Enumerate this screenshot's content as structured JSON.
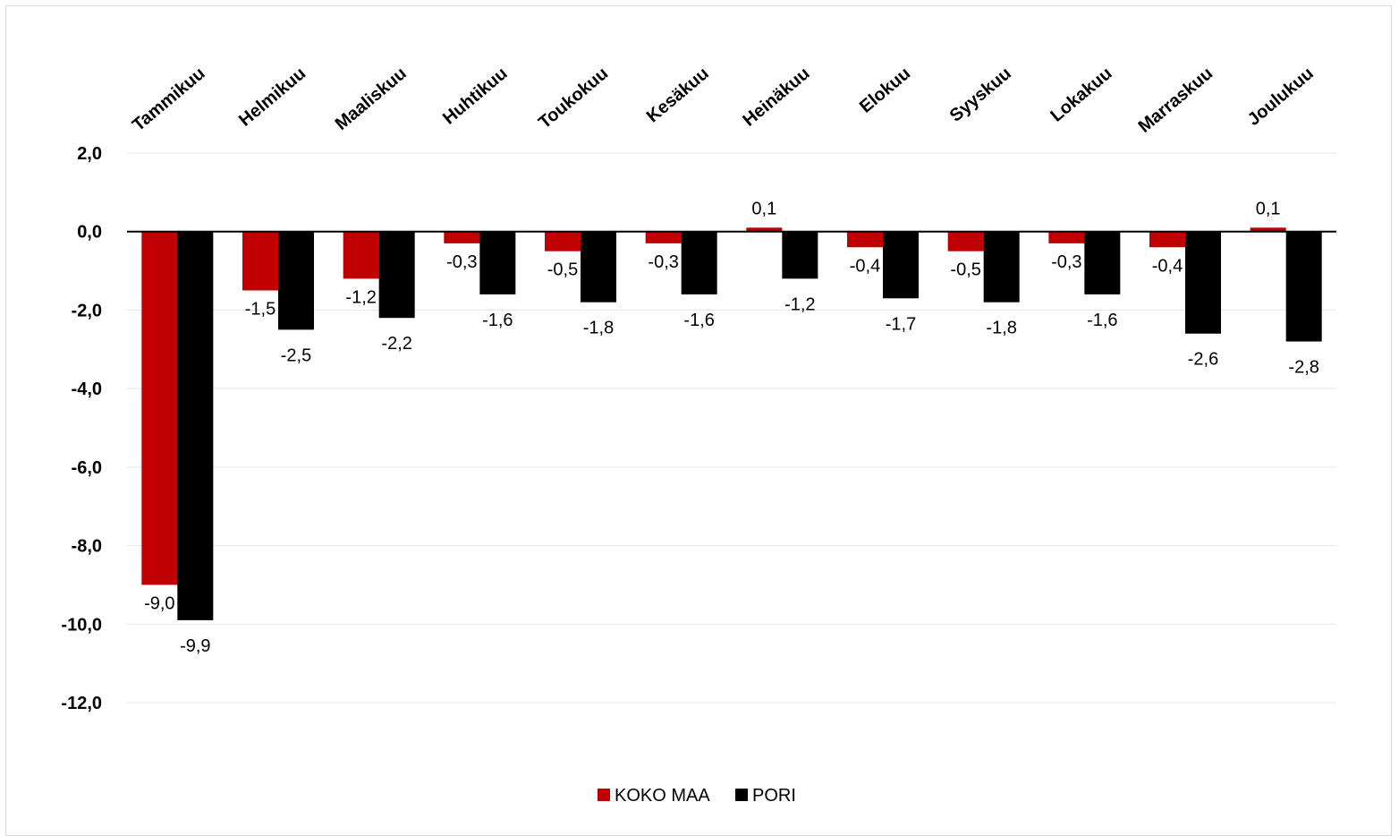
{
  "chart_data": {
    "type": "bar",
    "categories": [
      "Tammikuu",
      "Helmikuu",
      "Maaliskuu",
      "Huhtikuu",
      "Toukokuu",
      "Kesäkuu",
      "Heinäkuu",
      "Elokuu",
      "Syyskuu",
      "Lokakuu",
      "Marraskuu",
      "Joulukuu"
    ],
    "series": [
      {
        "name": "KOKO MAA",
        "color": "#c00000",
        "values": [
          -9.0,
          -1.5,
          -1.2,
          -0.3,
          -0.5,
          -0.3,
          0.1,
          -0.4,
          -0.5,
          -0.3,
          -0.4,
          0.1
        ],
        "labels": [
          "-9,0",
          "-1,5",
          "-1,2",
          "-0,3",
          "-0,5",
          "-0,3",
          "0,1",
          "-0,4",
          "-0,5",
          "-0,3",
          "-0,4",
          "0,1"
        ]
      },
      {
        "name": "PORI",
        "color": "#000000",
        "values": [
          -9.9,
          -2.5,
          -2.2,
          -1.6,
          -1.8,
          -1.6,
          -1.2,
          -1.7,
          -1.8,
          -1.6,
          -2.6,
          -2.8
        ],
        "labels": [
          "-9,9",
          "-2,5",
          "-2,2",
          "-1,6",
          "-1,8",
          "-1,6",
          "-1,2",
          "-1,7",
          "-1,8",
          "-1,6",
          "-2,6",
          "-2,8"
        ]
      }
    ],
    "ylim": [
      -12,
      2
    ],
    "yticks": [
      2,
      0,
      -2,
      -4,
      -6,
      -8,
      -10,
      -12
    ],
    "ytick_labels": [
      "2,0",
      "0,0",
      "-2,0",
      "-4,0",
      "-6,0",
      "-8,0",
      "-10,0",
      "-12,0"
    ],
    "grid": true,
    "legend_position": "bottom-center",
    "title": "",
    "xlabel": "",
    "ylabel": ""
  }
}
